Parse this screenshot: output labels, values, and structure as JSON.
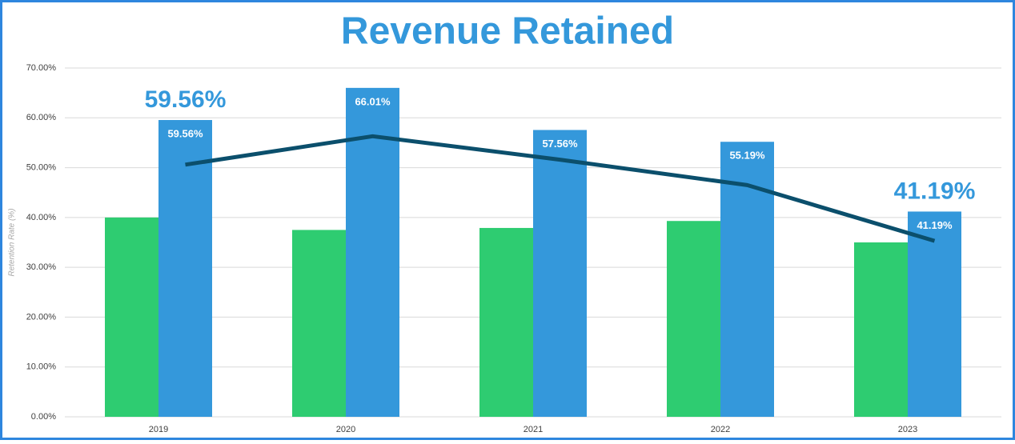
{
  "chart_data": {
    "type": "bar",
    "title": "Revenue Retained",
    "y_label": "Retention Rate (%)",
    "categories": [
      "2019",
      "2020",
      "2021",
      "2022",
      "2023"
    ],
    "series": [
      {
        "type": "bar",
        "color": "#2ecc71",
        "values": [
          40.0,
          37.5,
          37.9,
          39.3,
          35.0
        ]
      },
      {
        "type": "bar",
        "color": "#3498db",
        "values": [
          59.56,
          66.01,
          57.56,
          55.19,
          41.19
        ],
        "value_labels": [
          "59.56%",
          "66.01%",
          "57.56%",
          "55.19%",
          "41.19%"
        ]
      },
      {
        "type": "line",
        "color": "#0b4f6c",
        "values": [
          50.6,
          56.3,
          51.6,
          46.5,
          35.3
        ]
      }
    ],
    "annotations": [
      {
        "category": "2019",
        "label": "59.56%"
      },
      {
        "category": "2023",
        "label": "41.19%"
      }
    ],
    "ylim": [
      0,
      70
    ],
    "yticks": [
      {
        "value": 0,
        "label": "0.00%"
      },
      {
        "value": 10,
        "label": "10.00%"
      },
      {
        "value": 20,
        "label": "20.00%"
      },
      {
        "value": 30,
        "label": "30.00%"
      },
      {
        "value": 40,
        "label": "40.00%"
      },
      {
        "value": 50,
        "label": "50.00%"
      },
      {
        "value": 60,
        "label": "60.00%"
      },
      {
        "value": 70,
        "label": "70.00%"
      }
    ],
    "grid": true
  }
}
